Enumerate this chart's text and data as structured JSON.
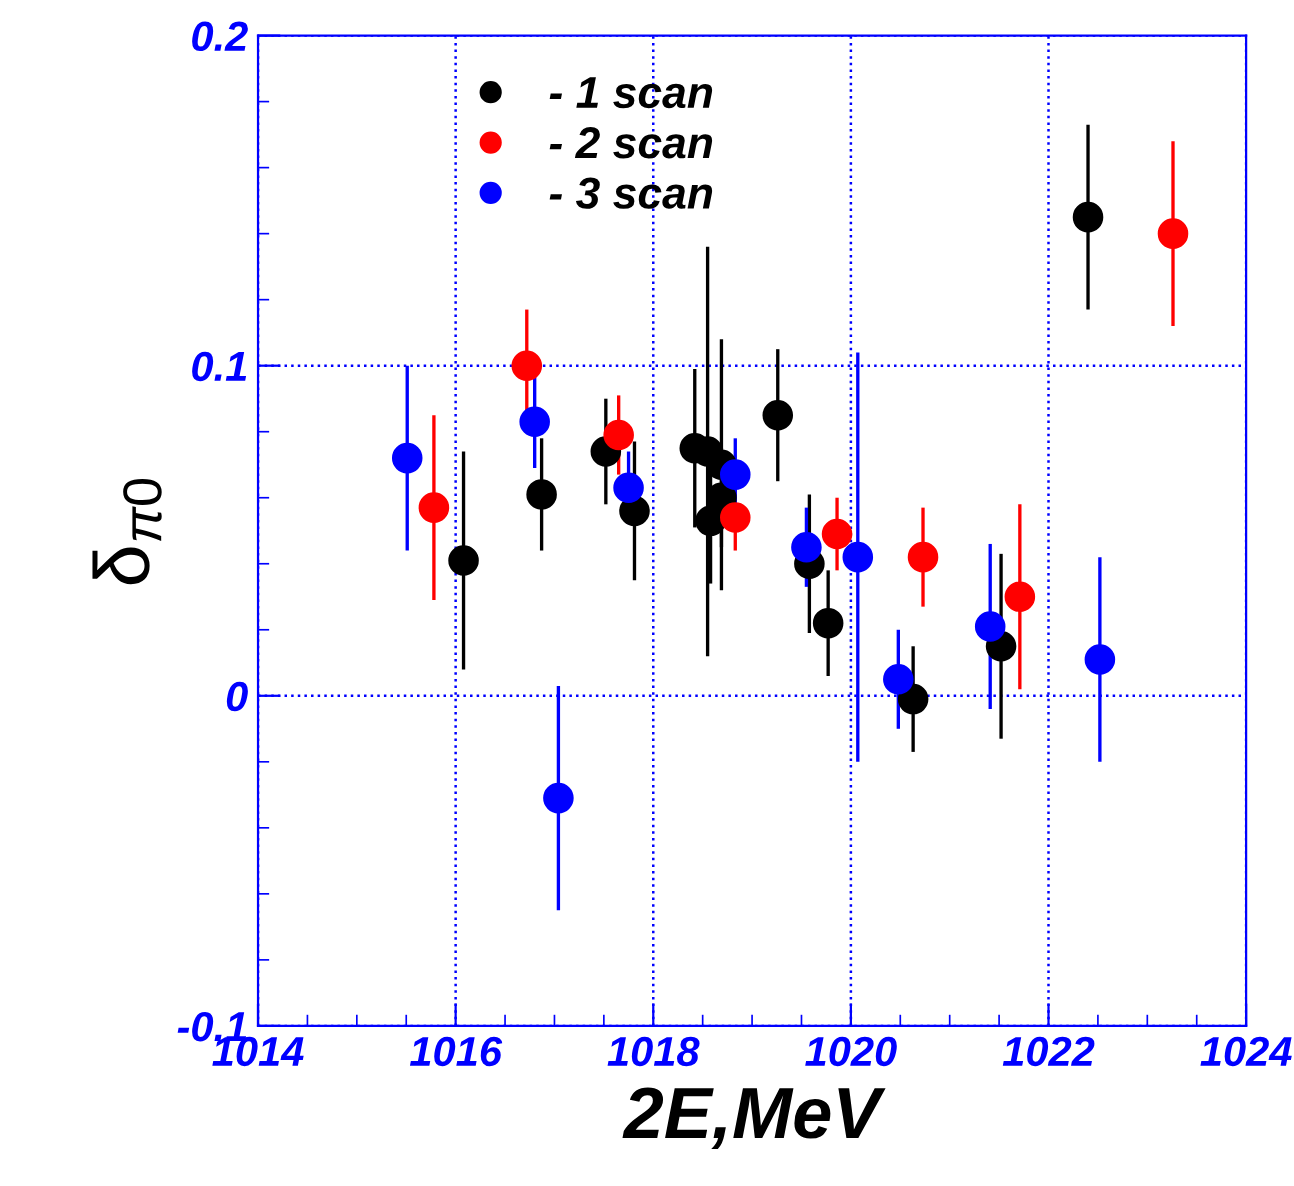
{
  "chart_data": {
    "type": "scatter",
    "xlabel": "2E,MeV",
    "ylabel": "δ$_{π0}$",
    "xlim": [
      1014,
      1024
    ],
    "xticks": [
      1014,
      1016,
      1018,
      1020,
      1022,
      1024
    ],
    "ylim": [
      -0.1,
      0.2
    ],
    "yticks": [
      {
        "value": -0.1,
        "label": "-0.1"
      },
      0,
      0.1,
      0.2
    ],
    "grid": true,
    "legend": "top left",
    "marker": "circle",
    "series": [
      {
        "name": "- 1 scan",
        "color": "#000000",
        "x": [
          1016.08,
          1016.87,
          1017.52,
          1017.81,
          1018.42,
          1018.55,
          1018.58,
          1018.69,
          1018.69,
          1019.26,
          1019.58,
          1019.77,
          1020.63,
          1021.52,
          1022.4
        ],
        "values": [
          0.041,
          0.061,
          0.074,
          0.056,
          0.075,
          0.074,
          0.053,
          0.07,
          0.06,
          0.085,
          0.04,
          0.022,
          -0.001,
          0.015,
          0.145
        ],
        "errors": [
          0.033,
          0.017,
          0.016,
          0.021,
          0.024,
          0.062,
          0.019,
          0.038,
          0.015,
          0.02,
          0.021,
          0.016,
          0.016,
          0.028,
          0.028
        ]
      },
      {
        "name": "- 2 scan",
        "color": "#ff0000",
        "x": [
          1015.78,
          1016.72,
          1017.65,
          1018.83,
          1019.86,
          1020.73,
          1021.71,
          1023.26
        ],
        "values": [
          0.057,
          0.1,
          0.079,
          0.054,
          0.049,
          0.042,
          0.03,
          0.14
        ],
        "errors": [
          0.028,
          0.017,
          0.012,
          0.01,
          0.011,
          0.015,
          0.028,
          0.028
        ]
      },
      {
        "name": "- 3 scan",
        "color": "#0000ff",
        "x": [
          1015.51,
          1016.8,
          1017.04,
          1017.75,
          1018.83,
          1019.55,
          1020.07,
          1020.48,
          1021.41,
          1022.52
        ],
        "values": [
          0.072,
          0.083,
          -0.031,
          0.063,
          0.067,
          0.045,
          0.042,
          0.005,
          0.021,
          0.011
        ],
        "errors": [
          0.028,
          0.014,
          0.034,
          0.011,
          0.011,
          0.012,
          0.062,
          0.015,
          0.025,
          0.031
        ]
      }
    ]
  }
}
